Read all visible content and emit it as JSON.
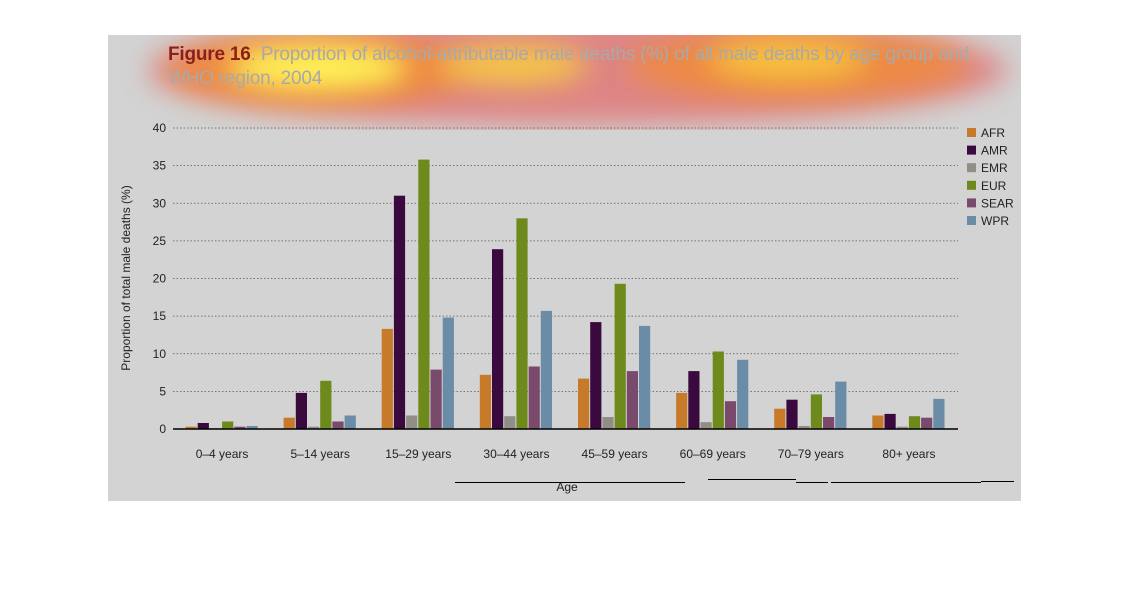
{
  "title": {
    "figure_label": "Figure 16",
    "text": ". Proportion of alcohol-attributable male deaths (%) of all male deaths by age group and WHO region, 2004"
  },
  "colors": {
    "AFR": "#c87a2b",
    "AMR": "#3a0a3f",
    "EMR": "#918d87",
    "EUR": "#6e8a1c",
    "SEAR": "#7a4a6c",
    "WPR": "#6a8ca6"
  },
  "chart_data": {
    "type": "bar",
    "xlabel": "Age",
    "ylabel": "Proportion of total male deaths (%)",
    "ylim": [
      0,
      40
    ],
    "yticks": [
      0,
      5,
      10,
      15,
      20,
      25,
      30,
      35,
      40
    ],
    "grid": true,
    "legend_position": "right",
    "categories": [
      "0–4 years",
      "5–14 years",
      "15–29 years",
      "30–44 years",
      "45–59 years",
      "60–69 years",
      "70–79 years",
      "80+ years"
    ],
    "series": [
      {
        "name": "AFR",
        "values": [
          0.3,
          1.5,
          13.3,
          7.2,
          6.7,
          4.8,
          2.7,
          1.8
        ]
      },
      {
        "name": "AMR",
        "values": [
          0.8,
          4.8,
          31.0,
          23.9,
          14.2,
          7.7,
          3.9,
          2.0
        ]
      },
      {
        "name": "EMR",
        "values": [
          0.1,
          0.3,
          1.8,
          1.7,
          1.6,
          0.9,
          0.4,
          0.3
        ]
      },
      {
        "name": "EUR",
        "values": [
          1.0,
          6.4,
          35.8,
          28.0,
          19.3,
          10.3,
          4.6,
          1.7
        ]
      },
      {
        "name": "SEAR",
        "values": [
          0.3,
          1.0,
          7.9,
          8.3,
          7.7,
          3.7,
          1.6,
          1.5
        ]
      },
      {
        "name": "WPR",
        "values": [
          0.4,
          1.8,
          14.8,
          15.7,
          13.7,
          9.2,
          6.3,
          4.0
        ]
      }
    ]
  }
}
